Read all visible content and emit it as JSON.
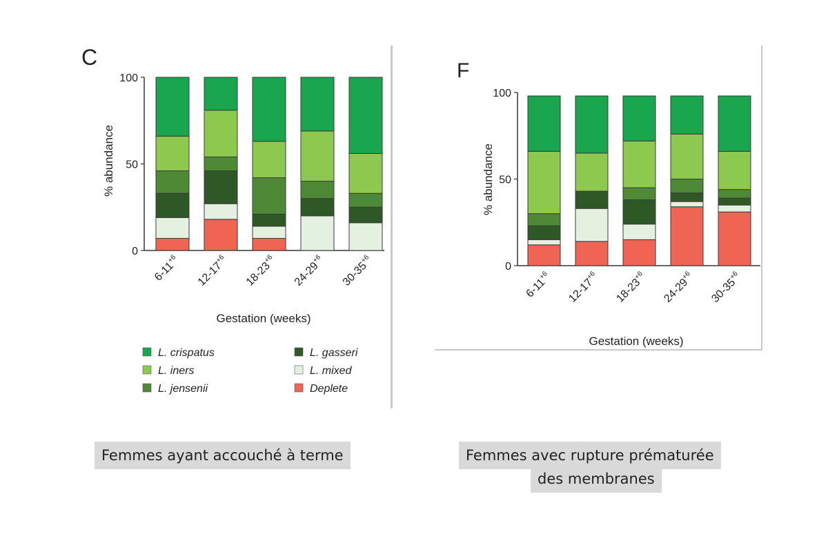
{
  "chart_data": [
    {
      "panel_letter": "C",
      "type": "bar",
      "stacked": true,
      "ylabel": "% abundance",
      "xlabel": "Gestation (weeks)",
      "ylim": [
        0,
        100
      ],
      "yticks": [
        "0",
        "50",
        "100"
      ],
      "categories": [
        "6-11",
        "12-17",
        "18-23",
        "24-29",
        "30-35"
      ],
      "category_superscript": "+6",
      "series": [
        {
          "name": "Deplete",
          "values": [
            7,
            18,
            7,
            0,
            0
          ]
        },
        {
          "name": "L. mixed",
          "values": [
            12,
            9,
            7,
            20,
            16
          ]
        },
        {
          "name": "L. gasseri",
          "values": [
            14,
            19,
            7,
            10,
            9
          ]
        },
        {
          "name": "L. jensenii",
          "values": [
            13,
            8,
            21,
            10,
            8
          ]
        },
        {
          "name": "L. iners",
          "values": [
            20,
            27,
            21,
            29,
            23
          ]
        },
        {
          "name": "L. crispatus",
          "values": [
            34,
            19,
            37,
            31,
            44
          ]
        }
      ],
      "legend": {
        "left": [
          "L. crispatus",
          "L. iners",
          "L. jensenii"
        ],
        "right": [
          "L. gasseri",
          "L. mixed",
          "Deplete"
        ]
      }
    },
    {
      "panel_letter": "F",
      "type": "bar",
      "stacked": true,
      "ylabel": "% abundance",
      "xlabel": "Gestation (weeks)",
      "ylim": [
        0,
        100
      ],
      "yticks": [
        "0",
        "50",
        "100"
      ],
      "categories": [
        "6-11",
        "12-17",
        "18-23",
        "24-29",
        "30-35"
      ],
      "category_superscript": "+6",
      "series": [
        {
          "name": "Deplete",
          "values": [
            12,
            14,
            15,
            34,
            31
          ]
        },
        {
          "name": "L. mixed",
          "values": [
            3,
            19,
            9,
            3,
            4
          ]
        },
        {
          "name": "L. gasseri",
          "values": [
            8,
            10,
            14,
            5,
            4
          ]
        },
        {
          "name": "L. jensenii",
          "values": [
            7,
            0,
            7,
            8,
            5
          ]
        },
        {
          "name": "L. iners",
          "values": [
            36,
            22,
            27,
            26,
            22
          ]
        },
        {
          "name": "L. crispatus",
          "values": [
            32,
            33,
            26,
            22,
            32
          ]
        }
      ]
    }
  ],
  "colors": {
    "L. crispatus": "#1aa54f",
    "L. iners": "#8cc94e",
    "L. jensenii": "#4e8a36",
    "L. gasseri": "#2e5926",
    "L. mixed": "#e4f1e0",
    "Deplete": "#ef6453"
  },
  "captions": {
    "left": "Femmes ayant accouché à terme",
    "right_line1": "Femmes avec rupture prématurée ",
    "right_line2": "des membranes"
  }
}
